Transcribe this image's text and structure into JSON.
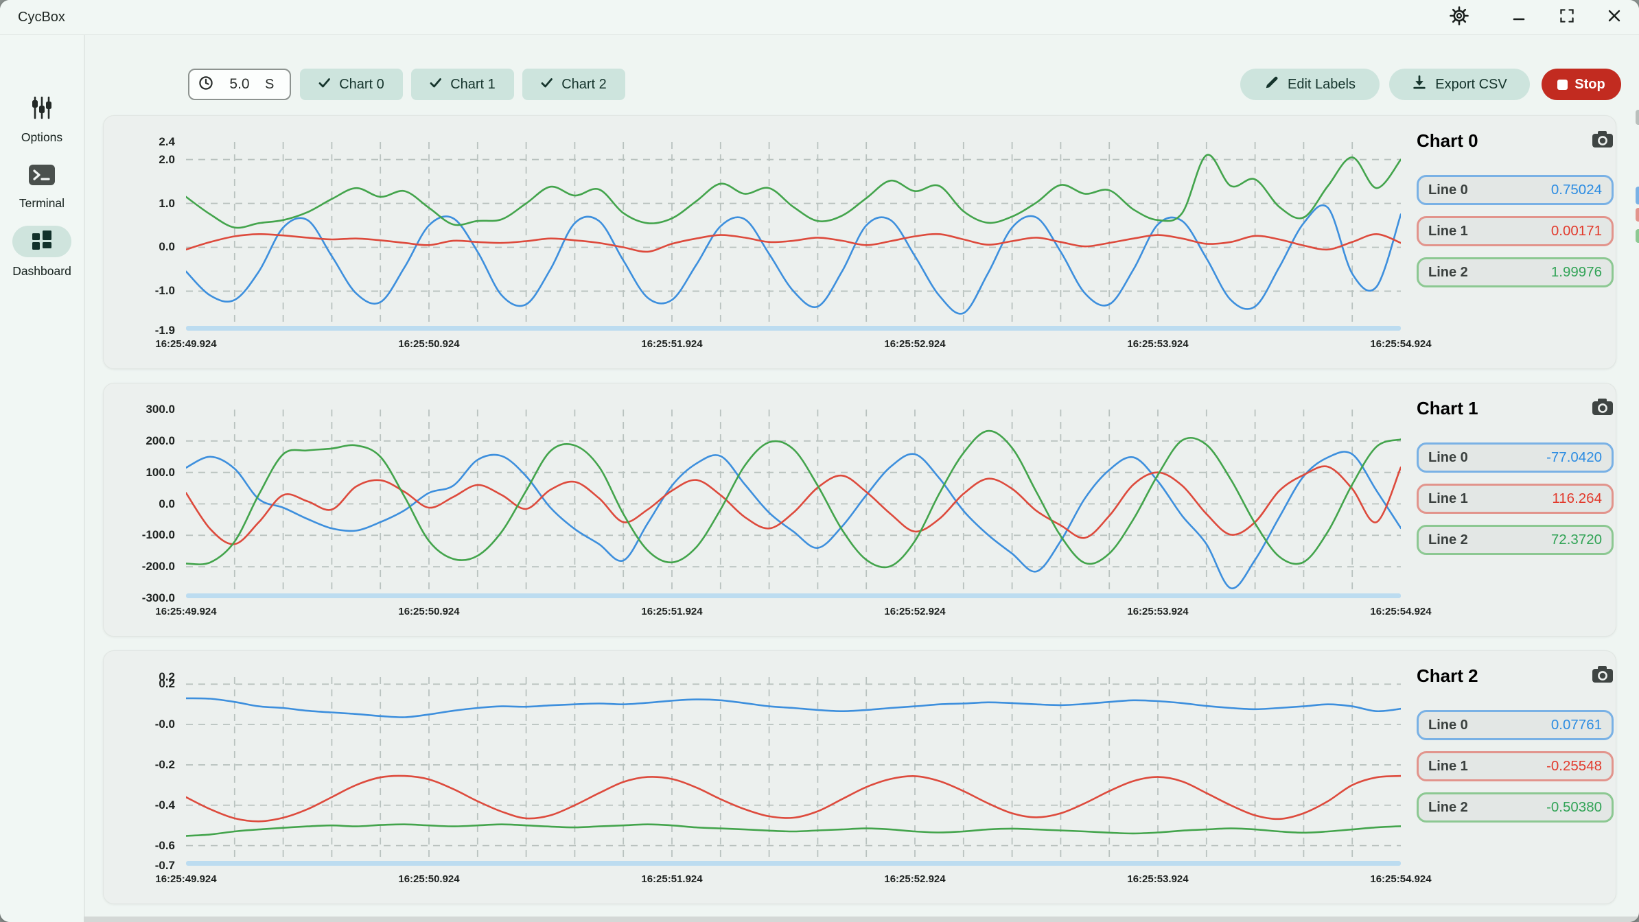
{
  "window": {
    "title": "CycBox"
  },
  "titlebar": {
    "icons": [
      "settings-icon",
      "minimize-icon",
      "maximize-icon",
      "close-icon"
    ]
  },
  "sidebar": {
    "items": [
      {
        "label": "Options",
        "icon": "sliders-icon",
        "active": false
      },
      {
        "label": "Terminal",
        "icon": "terminal-icon",
        "active": false
      },
      {
        "label": "Dashboard",
        "icon": "dashboard-icon",
        "active": true
      }
    ]
  },
  "toolbar": {
    "interval": {
      "value": "5.0",
      "unit": "S",
      "icon": "clock-icon"
    },
    "chart_toggles": [
      {
        "label": "Chart 0",
        "checked": true
      },
      {
        "label": "Chart 1",
        "checked": true
      },
      {
        "label": "Chart 2",
        "checked": true
      }
    ],
    "edit_labels_label": "Edit Labels",
    "export_csv_label": "Export CSV",
    "stop_label": "Stop"
  },
  "colors": {
    "accent_teal": "#cde4dd",
    "accent_teal_text": "#15342c",
    "stop_red": "#c22b20",
    "line_blue": "#3d8fdd",
    "line_red": "#dd4a3c",
    "line_green": "#43a44c",
    "badge_bg": "#e3e7e5",
    "grid": "#b9c2bf",
    "baseline": "#bcdcf0",
    "panel_bg": "#ecf0ee"
  },
  "charts": [
    {
      "title": "Chart 0",
      "legend": [
        {
          "label": "Line 0",
          "value": "0.75024"
        },
        {
          "label": "Line 1",
          "value": "0.00171"
        },
        {
          "label": "Line 2",
          "value": "1.99976"
        }
      ]
    },
    {
      "title": "Chart 1",
      "legend": [
        {
          "label": "Line 0",
          "value": "-77.0420"
        },
        {
          "label": "Line 1",
          "value": "116.264"
        },
        {
          "label": "Line 2",
          "value": "72.3720"
        }
      ]
    },
    {
      "title": "Chart 2",
      "legend": [
        {
          "label": "Line 0",
          "value": "0.07761"
        },
        {
          "label": "Line 1",
          "value": "-0.25548"
        },
        {
          "label": "Line 2",
          "value": "-0.50380"
        }
      ]
    }
  ],
  "chart_data": [
    {
      "type": "line",
      "title": "Chart 0",
      "x_range_s": [
        0,
        5
      ],
      "x_minor_step_s": 0.2,
      "grid": true,
      "legend_position": "right",
      "ylim": [
        -1.9,
        2.4
      ],
      "y_ticks": [
        {
          "label": "2.4",
          "value": 2.4,
          "grid": false
        },
        {
          "label": "2.0",
          "value": 2.0,
          "grid": true
        },
        {
          "label": "1.0",
          "value": 1.0,
          "grid": true
        },
        {
          "label": "0.0",
          "value": 0.0,
          "grid": true
        },
        {
          "label": "-1.0",
          "value": -1.0,
          "grid": true
        },
        {
          "label": "-1.9",
          "value": -1.9,
          "grid": false
        }
      ],
      "x_ticks": [
        {
          "label": "16:25:49.924",
          "t": 0
        },
        {
          "label": "16:25:50.924",
          "t": 1
        },
        {
          "label": "16:25:51.924",
          "t": 2
        },
        {
          "label": "16:25:52.924",
          "t": 3
        },
        {
          "label": "16:25:53.924",
          "t": 4
        },
        {
          "label": "16:25:54.924",
          "t": 5
        }
      ],
      "series": [
        {
          "name": "Line 0",
          "color": "#3d8fdd",
          "values": [
            -0.55,
            -1.1,
            -1.2,
            -0.55,
            0.45,
            0.62,
            -0.2,
            -1.05,
            -1.25,
            -0.45,
            0.5,
            0.66,
            -0.1,
            -1.1,
            -1.3,
            -0.5,
            0.55,
            0.6,
            -0.3,
            -1.15,
            -1.2,
            -0.4,
            0.48,
            0.64,
            -0.15,
            -1.0,
            -1.35,
            -0.55,
            0.5,
            0.62,
            -0.2,
            -1.1,
            -1.5,
            -0.6,
            0.45,
            0.68,
            -0.1,
            -1.05,
            -1.3,
            -0.5,
            0.52,
            0.6,
            -0.25,
            -1.2,
            -1.35,
            -0.45,
            0.55,
            0.9,
            -0.6,
            -0.9,
            0.75
          ]
        },
        {
          "name": "Line 1",
          "color": "#dd4a3c",
          "values": [
            -0.05,
            0.12,
            0.25,
            0.3,
            0.27,
            0.22,
            0.18,
            0.2,
            0.16,
            0.1,
            0.05,
            0.15,
            0.12,
            0.1,
            0.14,
            0.2,
            0.16,
            0.1,
            0.0,
            -0.1,
            0.08,
            0.2,
            0.28,
            0.22,
            0.12,
            0.15,
            0.22,
            0.15,
            0.05,
            0.14,
            0.25,
            0.3,
            0.18,
            0.06,
            0.14,
            0.22,
            0.12,
            0.02,
            0.1,
            0.2,
            0.28,
            0.2,
            0.08,
            0.12,
            0.26,
            0.18,
            0.04,
            -0.05,
            0.12,
            0.3,
            0.1
          ]
        },
        {
          "name": "Line 2",
          "color": "#43a44c",
          "values": [
            1.15,
            0.75,
            0.45,
            0.55,
            0.62,
            0.8,
            1.1,
            1.35,
            1.15,
            1.28,
            0.9,
            0.52,
            0.6,
            0.64,
            1.0,
            1.38,
            1.18,
            1.32,
            0.78,
            0.55,
            0.66,
            1.05,
            1.45,
            1.22,
            1.35,
            0.92,
            0.6,
            0.72,
            1.12,
            1.52,
            1.28,
            1.4,
            0.82,
            0.56,
            0.7,
            1.02,
            1.42,
            1.22,
            1.3,
            0.86,
            0.62,
            0.78,
            2.1,
            1.4,
            1.55,
            0.92,
            0.68,
            1.4,
            2.05,
            1.35,
            2.0
          ]
        }
      ]
    },
    {
      "type": "line",
      "title": "Chart 1",
      "x_range_s": [
        0,
        5
      ],
      "x_minor_step_s": 0.2,
      "grid": true,
      "legend_position": "right",
      "ylim": [
        -300,
        300
      ],
      "y_ticks": [
        {
          "label": "300.0",
          "value": 300,
          "grid": false
        },
        {
          "label": "200.0",
          "value": 200,
          "grid": true
        },
        {
          "label": "100.0",
          "value": 100,
          "grid": true
        },
        {
          "label": "0.0",
          "value": 0,
          "grid": true
        },
        {
          "label": "-100.0",
          "value": -100,
          "grid": true
        },
        {
          "label": "-200.0",
          "value": -200,
          "grid": true
        },
        {
          "label": "-300.0",
          "value": -300,
          "grid": false
        }
      ],
      "x_ticks": [
        {
          "label": "16:25:49.924",
          "t": 0
        },
        {
          "label": "16:25:50.924",
          "t": 1
        },
        {
          "label": "16:25:51.924",
          "t": 2
        },
        {
          "label": "16:25:52.924",
          "t": 3
        },
        {
          "label": "16:25:53.924",
          "t": 4
        },
        {
          "label": "16:25:54.924",
          "t": 5
        }
      ],
      "series": [
        {
          "name": "Line 0",
          "color": "#3d8fdd",
          "values": [
            115,
            150,
            112,
            15,
            -12,
            -48,
            -78,
            -85,
            -58,
            -20,
            35,
            58,
            140,
            152,
            88,
            -12,
            -80,
            -128,
            -180,
            -62,
            58,
            128,
            152,
            62,
            -28,
            -88,
            -140,
            -72,
            28,
            118,
            158,
            82,
            -22,
            -98,
            -158,
            -215,
            -118,
            18,
            108,
            148,
            72,
            -38,
            -128,
            -268,
            -178,
            -42,
            88,
            148,
            158,
            42,
            -77
          ]
        },
        {
          "name": "Line 1",
          "color": "#dd4a3c",
          "values": [
            35,
            -80,
            -128,
            -58,
            28,
            8,
            -18,
            55,
            75,
            38,
            -12,
            22,
            60,
            28,
            -16,
            45,
            70,
            18,
            -58,
            -18,
            42,
            76,
            28,
            -42,
            -78,
            -28,
            52,
            90,
            38,
            -32,
            -88,
            -48,
            32,
            80,
            48,
            -22,
            -68,
            -108,
            -38,
            62,
            100,
            58,
            -32,
            -98,
            -58,
            42,
            92,
            118,
            48,
            -58,
            116
          ]
        },
        {
          "name": "Line 2",
          "color": "#43a44c",
          "values": [
            -190,
            -186,
            -120,
            30,
            158,
            170,
            176,
            186,
            150,
            22,
            -118,
            -175,
            -165,
            -88,
            42,
            168,
            186,
            118,
            -32,
            -148,
            -186,
            -138,
            -18,
            122,
            196,
            174,
            58,
            -82,
            -178,
            -198,
            -118,
            32,
            162,
            232,
            178,
            38,
            -102,
            -188,
            -158,
            -48,
            92,
            202,
            188,
            78,
            -62,
            -168,
            -185,
            -88,
            62,
            182,
            205
          ]
        }
      ]
    },
    {
      "type": "line",
      "title": "Chart 2",
      "x_range_s": [
        0,
        5
      ],
      "x_minor_step_s": 0.2,
      "grid": true,
      "legend_position": "right",
      "ylim": [
        -0.7,
        0.235
      ],
      "y_ticks": [
        {
          "label": "0.2",
          "value": 0.235,
          "grid": false
        },
        {
          "label": "0.2",
          "value": 0.2,
          "grid": true
        },
        {
          "label": "-0.0",
          "value": 0.0,
          "grid": true
        },
        {
          "label": "-0.2",
          "value": -0.2,
          "grid": true
        },
        {
          "label": "-0.4",
          "value": -0.4,
          "grid": true
        },
        {
          "label": "-0.6",
          "value": -0.6,
          "grid": true
        },
        {
          "label": "-0.7",
          "value": -0.7,
          "grid": false
        }
      ],
      "x_ticks": [
        {
          "label": "16:25:49.924",
          "t": 0
        },
        {
          "label": "16:25:50.924",
          "t": 1
        },
        {
          "label": "16:25:51.924",
          "t": 2
        },
        {
          "label": "16:25:52.924",
          "t": 3
        },
        {
          "label": "16:25:53.924",
          "t": 4
        },
        {
          "label": "16:25:54.924",
          "t": 5
        }
      ],
      "series": [
        {
          "name": "Line 0",
          "color": "#3d8fdd",
          "values": [
            0.13,
            0.128,
            0.112,
            0.09,
            0.082,
            0.068,
            0.06,
            0.052,
            0.042,
            0.036,
            0.05,
            0.068,
            0.082,
            0.09,
            0.088,
            0.095,
            0.1,
            0.104,
            0.1,
            0.108,
            0.118,
            0.124,
            0.12,
            0.106,
            0.09,
            0.082,
            0.072,
            0.066,
            0.072,
            0.082,
            0.09,
            0.1,
            0.104,
            0.11,
            0.106,
            0.1,
            0.096,
            0.102,
            0.112,
            0.12,
            0.116,
            0.106,
            0.092,
            0.082,
            0.076,
            0.082,
            0.09,
            0.1,
            0.09,
            0.066,
            0.078
          ]
        },
        {
          "name": "Line 1",
          "color": "#dd4a3c",
          "values": [
            -0.36,
            -0.42,
            -0.465,
            -0.48,
            -0.462,
            -0.42,
            -0.36,
            -0.3,
            -0.262,
            -0.255,
            -0.272,
            -0.32,
            -0.38,
            -0.432,
            -0.465,
            -0.45,
            -0.4,
            -0.34,
            -0.285,
            -0.26,
            -0.27,
            -0.312,
            -0.37,
            -0.42,
            -0.455,
            -0.462,
            -0.43,
            -0.37,
            -0.31,
            -0.27,
            -0.256,
            -0.28,
            -0.33,
            -0.39,
            -0.44,
            -0.46,
            -0.44,
            -0.39,
            -0.33,
            -0.28,
            -0.26,
            -0.282,
            -0.34,
            -0.4,
            -0.45,
            -0.468,
            -0.44,
            -0.38,
            -0.3,
            -0.262,
            -0.255
          ]
        },
        {
          "name": "Line 2",
          "color": "#43a44c",
          "values": [
            -0.552,
            -0.545,
            -0.53,
            -0.52,
            -0.512,
            -0.505,
            -0.5,
            -0.505,
            -0.498,
            -0.495,
            -0.5,
            -0.505,
            -0.5,
            -0.495,
            -0.5,
            -0.506,
            -0.51,
            -0.505,
            -0.5,
            -0.495,
            -0.5,
            -0.51,
            -0.515,
            -0.52,
            -0.526,
            -0.53,
            -0.525,
            -0.52,
            -0.515,
            -0.52,
            -0.53,
            -0.535,
            -0.53,
            -0.52,
            -0.516,
            -0.52,
            -0.525,
            -0.53,
            -0.536,
            -0.54,
            -0.535,
            -0.526,
            -0.52,
            -0.515,
            -0.52,
            -0.53,
            -0.536,
            -0.53,
            -0.52,
            -0.51,
            -0.504
          ]
        }
      ]
    }
  ]
}
